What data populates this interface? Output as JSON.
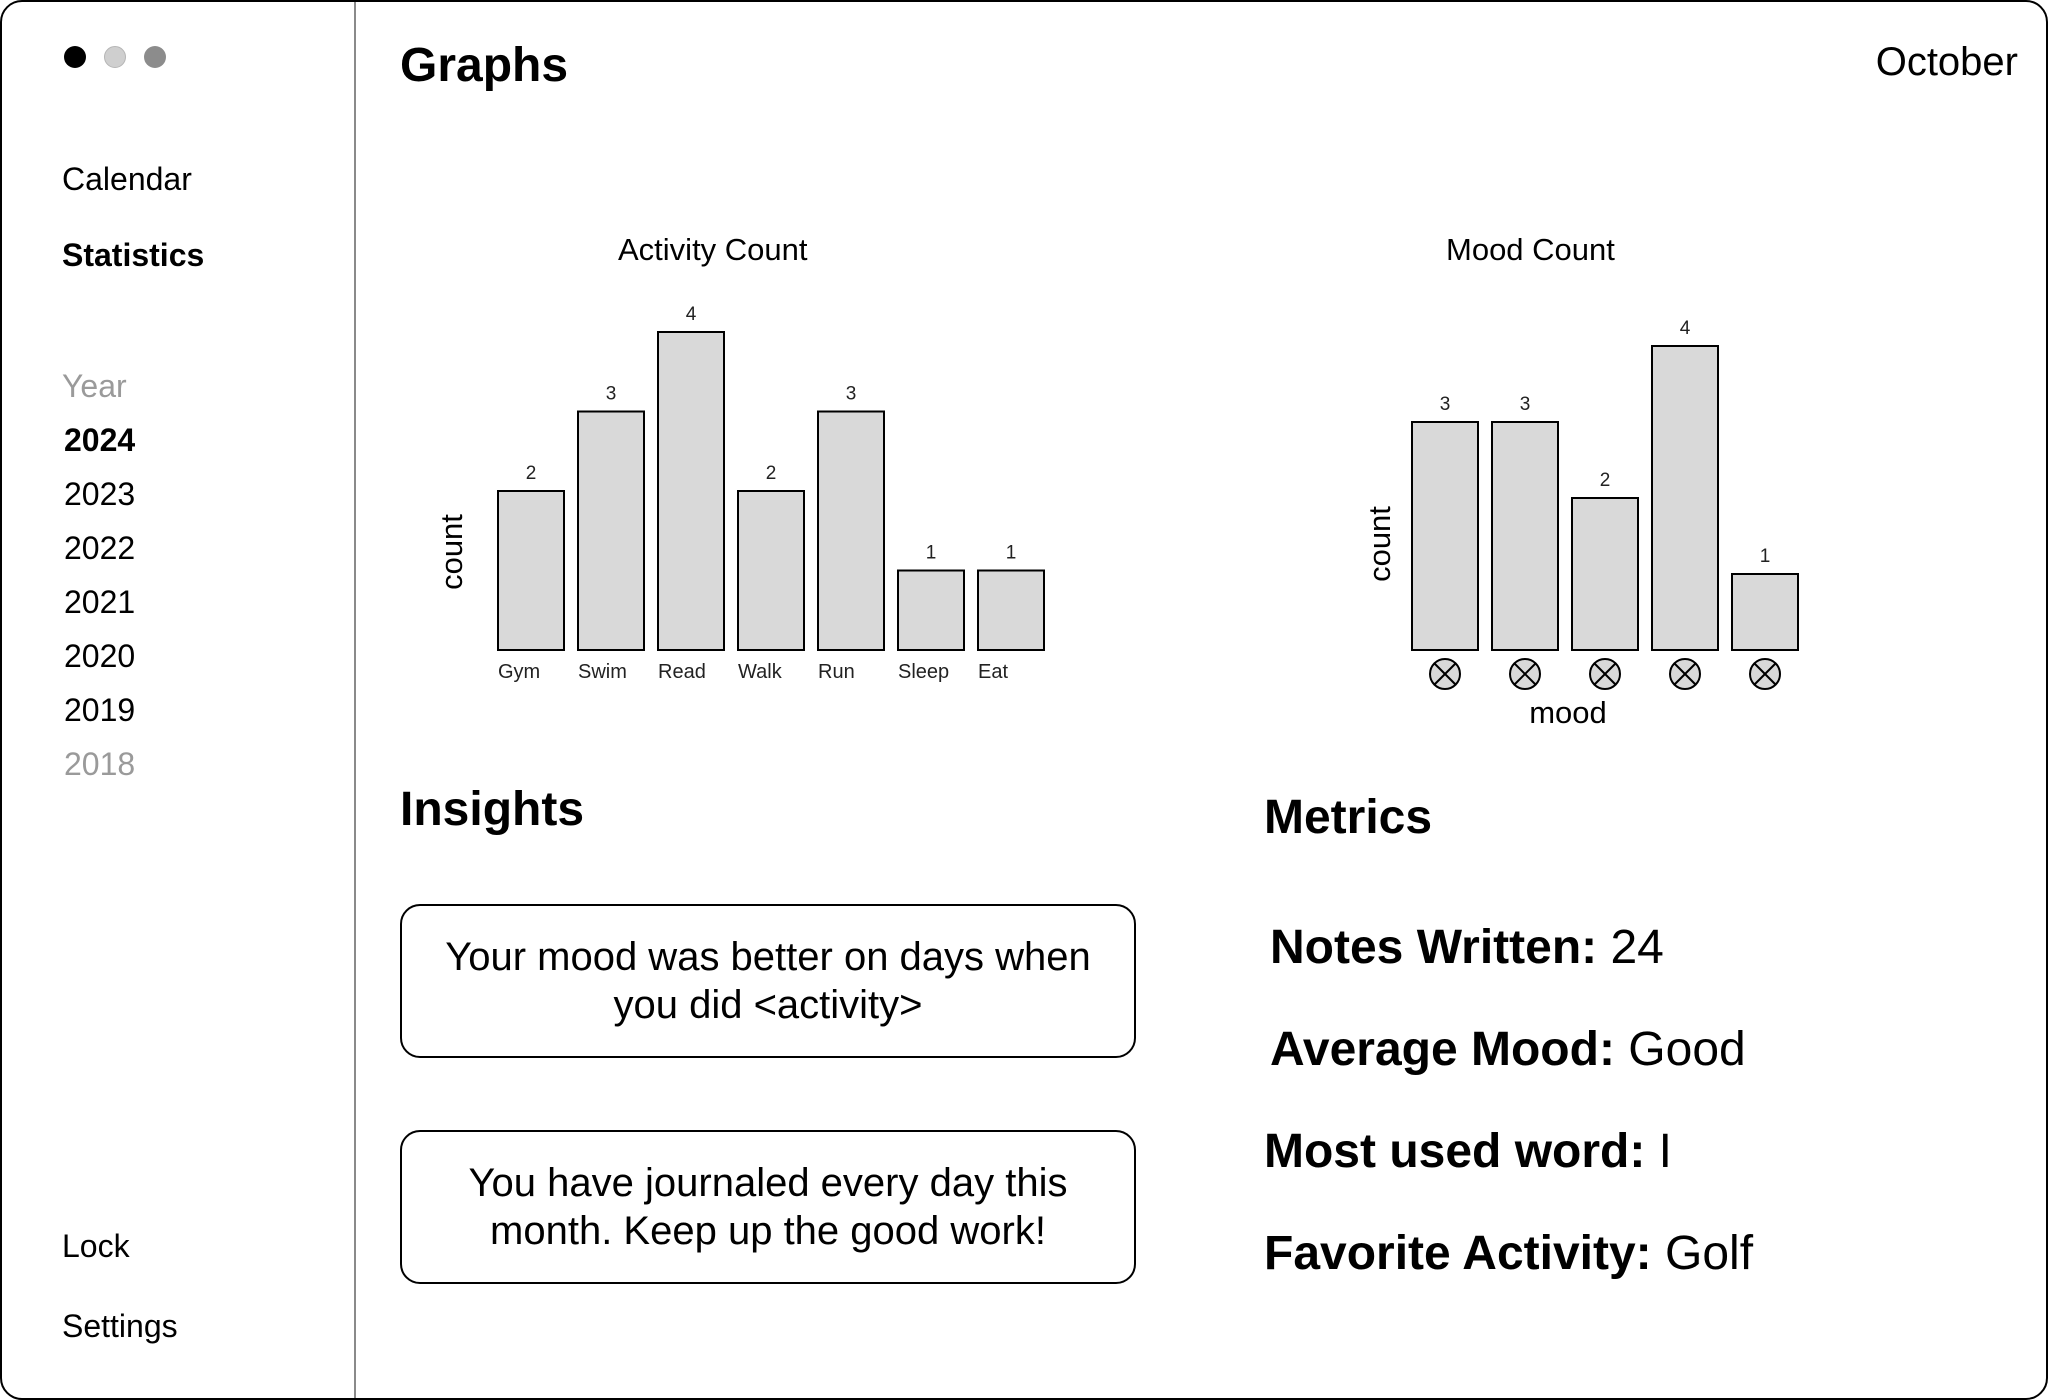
{
  "window": {
    "controls": [
      "close-dot",
      "minimize-dot",
      "maximize-dot"
    ]
  },
  "sidebar": {
    "nav": [
      {
        "label": "Calendar",
        "active": false
      },
      {
        "label": "Statistics",
        "active": true
      }
    ],
    "year_heading": "Year",
    "years": [
      {
        "label": "2024",
        "state": "selected"
      },
      {
        "label": "2023",
        "state": "normal"
      },
      {
        "label": "2022",
        "state": "normal"
      },
      {
        "label": "2021",
        "state": "normal"
      },
      {
        "label": "2020",
        "state": "normal"
      },
      {
        "label": "2019",
        "state": "normal"
      },
      {
        "label": "2018",
        "state": "faded"
      }
    ],
    "bottom": [
      {
        "label": "Lock"
      },
      {
        "label": "Settings"
      }
    ]
  },
  "header": {
    "title": "Graphs",
    "month": "October"
  },
  "chart_data": [
    {
      "type": "bar",
      "title": "Activity Count",
      "xlabel": "",
      "ylabel": "count",
      "categories": [
        "Gym",
        "Swim",
        "Read",
        "Walk",
        "Run",
        "Sleep",
        "Eat"
      ],
      "values": [
        2,
        3,
        4,
        2,
        3,
        1,
        1
      ],
      "ylim": [
        0,
        4
      ],
      "grid": false,
      "bar_color": "#d9d9d9"
    },
    {
      "type": "bar",
      "title": "Mood Count",
      "xlabel": "mood",
      "ylabel": "count",
      "categories": [
        "",
        "",
        "",
        "",
        ""
      ],
      "category_icons": [
        "mood-icon",
        "mood-icon",
        "mood-icon",
        "mood-icon",
        "mood-icon"
      ],
      "values": [
        3,
        3,
        2,
        4,
        1
      ],
      "ylim": [
        0,
        4
      ],
      "grid": false,
      "bar_color": "#d9d9d9"
    }
  ],
  "insights": {
    "heading": "Insights",
    "items": [
      "Your mood was better on days when you did <activity>",
      "You have journaled every day this month. Keep up the good work!"
    ]
  },
  "metrics": {
    "heading": "Metrics",
    "items": [
      {
        "key": "Notes Written:",
        "value": "24"
      },
      {
        "key": "Average Mood:",
        "value": "Good"
      },
      {
        "key": "Most used word:",
        "value": "I"
      },
      {
        "key": "Favorite Activity:",
        "value": "Golf"
      }
    ]
  }
}
